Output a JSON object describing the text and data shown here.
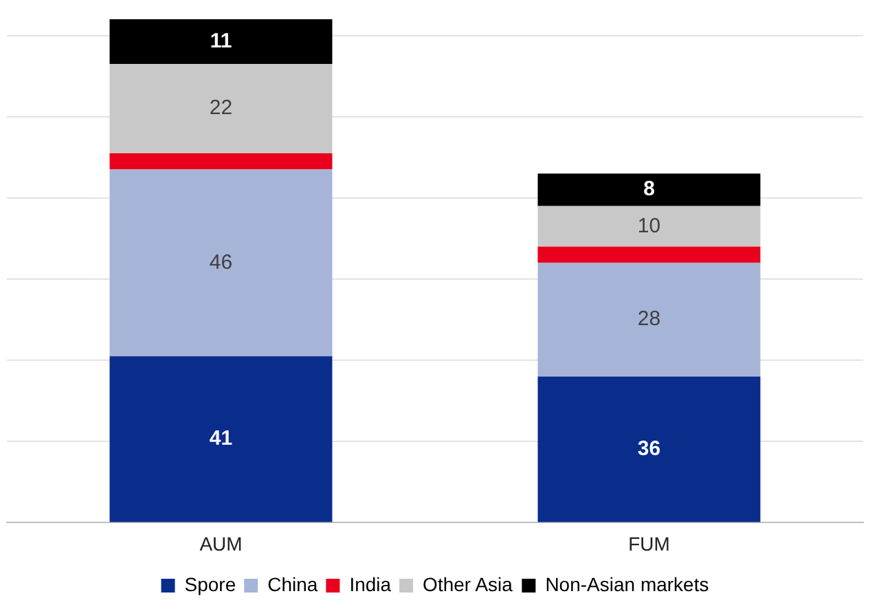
{
  "chart_data": {
    "type": "bar",
    "stacked": true,
    "categories": [
      "AUM",
      "FUM"
    ],
    "series": [
      {
        "name": "Spore",
        "color": "#0a2d8c",
        "values": [
          41,
          36
        ],
        "value_labels": [
          "41",
          "36"
        ]
      },
      {
        "name": "China",
        "color": "#a6b4d8",
        "values": [
          46,
          28
        ],
        "value_labels": [
          "46",
          "28"
        ]
      },
      {
        "name": "India",
        "color": "#e8001c",
        "values": [
          4,
          4
        ],
        "value_labels": [
          null,
          null
        ]
      },
      {
        "name": "Other Asia",
        "color": "#c8c8c8",
        "values": [
          22,
          10
        ],
        "value_labels": [
          "22",
          "10"
        ]
      },
      {
        "name": "Non-Asian markets",
        "color": "#000000",
        "values": [
          11,
          8
        ],
        "value_labels": [
          "11",
          "8"
        ]
      }
    ],
    "yticks": [
      {
        "value": 0,
        "label": null
      },
      {
        "value": 20,
        "label": null
      },
      {
        "value": 40,
        "label": null
      },
      {
        "value": 60,
        "label": null
      },
      {
        "value": 80,
        "label": null
      },
      {
        "value": 100,
        "label": null
      },
      {
        "value": 120,
        "label": null
      }
    ],
    "tick_labels": "x",
    "grid": "y",
    "legend": "bottom"
  }
}
